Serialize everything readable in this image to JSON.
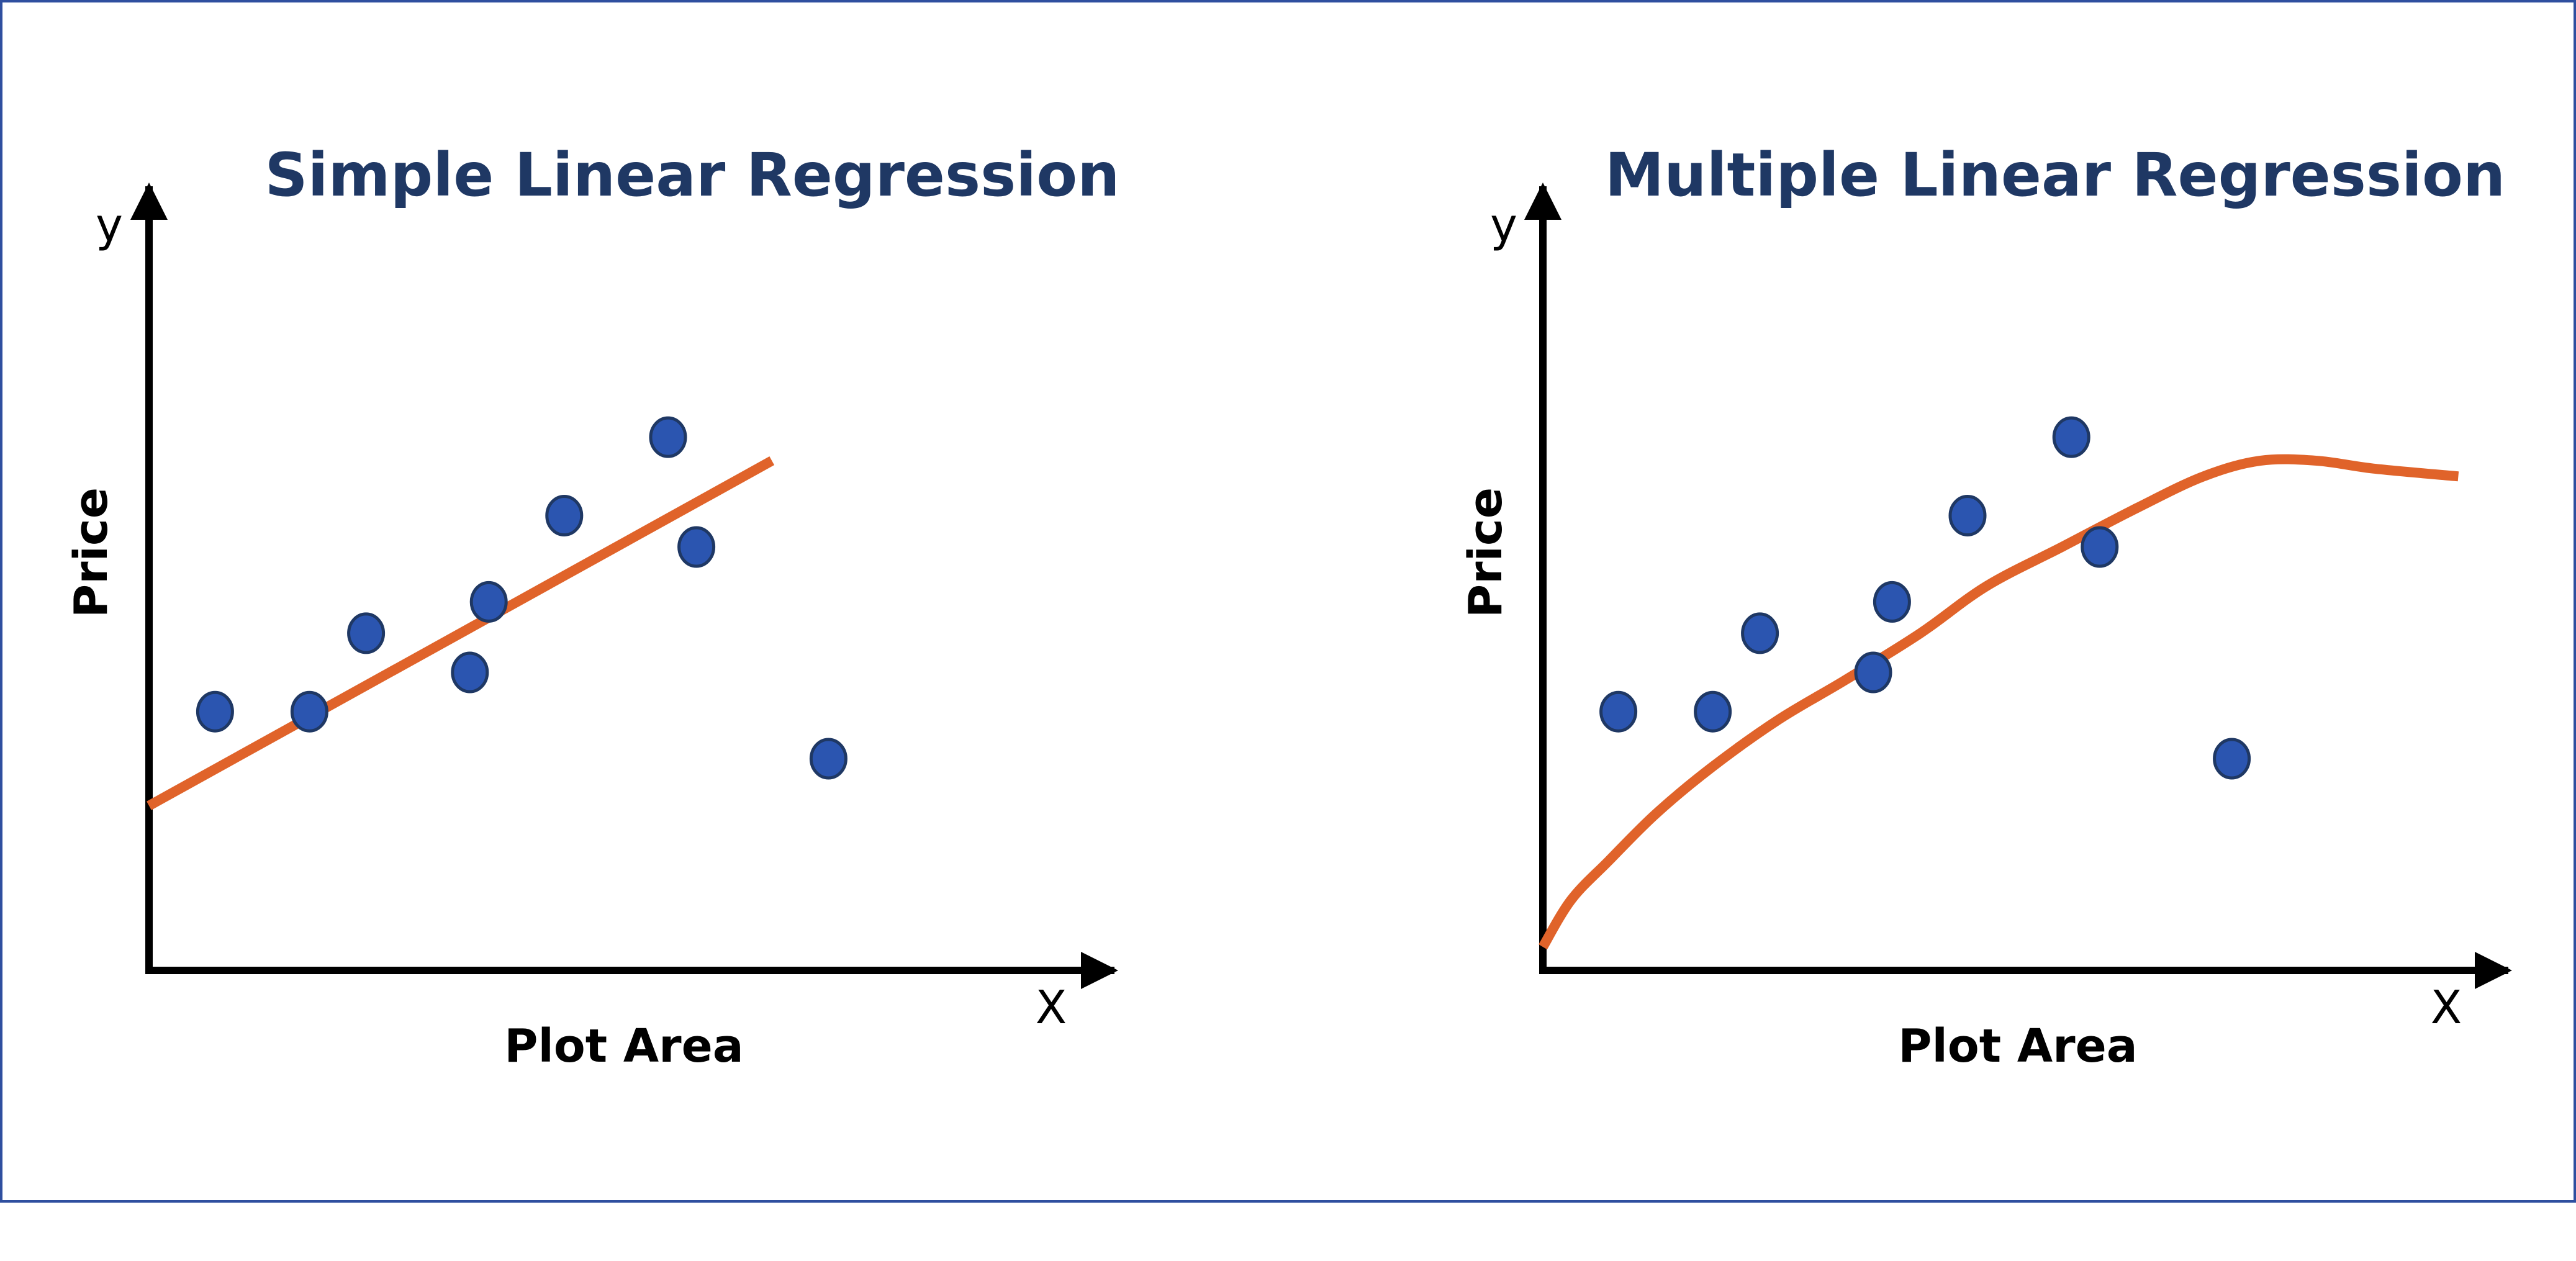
{
  "colors": {
    "frame": "#2f4f9f",
    "title": "#1f3864",
    "axis": "#000000",
    "point_fill": "#2b55b0",
    "point_stroke": "#1f3864",
    "fit_line": "#e0632a"
  },
  "chart_data": [
    {
      "type": "scatter",
      "title": "Simple Linear Regression",
      "xlabel": "Plot Area",
      "ylabel": "Price",
      "x_axis_letter": "X",
      "y_axis_letter": "y",
      "xlim": [
        0,
        10
      ],
      "ylim": [
        0,
        10
      ],
      "grid": false,
      "points": [
        {
          "x": 0.7,
          "y": 3.3
        },
        {
          "x": 1.7,
          "y": 3.3
        },
        {
          "x": 2.3,
          "y": 4.3
        },
        {
          "x": 3.4,
          "y": 3.8
        },
        {
          "x": 3.6,
          "y": 4.7
        },
        {
          "x": 4.4,
          "y": 5.8
        },
        {
          "x": 5.5,
          "y": 6.8
        },
        {
          "x": 5.8,
          "y": 5.4
        },
        {
          "x": 7.2,
          "y": 2.7
        }
      ],
      "fit": {
        "kind": "linear",
        "points": [
          [
            0,
            2.1
          ],
          [
            6.6,
            6.5
          ]
        ]
      }
    },
    {
      "type": "scatter",
      "title": "Multiple Linear Regression",
      "xlabel": "Plot Area",
      "ylabel": "Price",
      "x_axis_letter": "X",
      "y_axis_letter": "y",
      "xlim": [
        0,
        10
      ],
      "ylim": [
        0,
        10
      ],
      "grid": false,
      "points": [
        {
          "x": 0.8,
          "y": 3.3
        },
        {
          "x": 1.8,
          "y": 3.3
        },
        {
          "x": 2.3,
          "y": 4.3
        },
        {
          "x": 3.5,
          "y": 3.8
        },
        {
          "x": 3.7,
          "y": 4.7
        },
        {
          "x": 4.5,
          "y": 5.8
        },
        {
          "x": 5.6,
          "y": 6.8
        },
        {
          "x": 5.9,
          "y": 5.4
        },
        {
          "x": 7.3,
          "y": 2.7
        }
      ],
      "fit": {
        "kind": "curve",
        "points": [
          [
            0,
            0.3
          ],
          [
            0.3,
            0.9
          ],
          [
            0.7,
            1.4
          ],
          [
            1.2,
            2
          ],
          [
            1.8,
            2.6
          ],
          [
            2.5,
            3.2
          ],
          [
            3.2,
            3.7
          ],
          [
            4.0,
            4.3
          ],
          [
            4.7,
            4.9
          ],
          [
            5.5,
            5.4
          ],
          [
            6.3,
            5.9
          ],
          [
            7.0,
            6.3
          ],
          [
            7.6,
            6.5
          ],
          [
            8.2,
            6.5
          ],
          [
            8.8,
            6.4
          ],
          [
            9.7,
            6.3
          ]
        ]
      }
    }
  ]
}
